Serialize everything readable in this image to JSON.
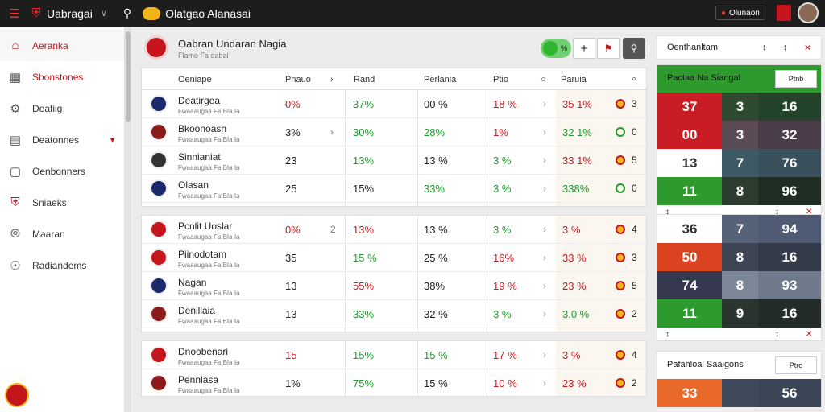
{
  "topbar": {
    "app_name": "Uabragai",
    "search_title": "Olatgao Alanasai",
    "user_chip": "Olunaon",
    "icons": [
      "menu-icon",
      "crest-icon",
      "chevron-down-icon",
      "search-icon",
      "logo-badge-icon",
      "chat-icon",
      "flag-icon",
      "avatar"
    ]
  },
  "sidebar": {
    "items": [
      {
        "label": "Aeranka",
        "icon": "home-icon",
        "active": true
      },
      {
        "label": "Sbonstones",
        "icon": "building-icon",
        "active": false
      },
      {
        "label": "Deafiig",
        "icon": "trophy-icon",
        "active": false
      },
      {
        "label": "Deatonnes",
        "icon": "store-icon",
        "active": false
      },
      {
        "label": "Oenbonners",
        "icon": "bag-icon",
        "active": false
      },
      {
        "label": "Sniaeks",
        "icon": "shield-icon",
        "active": false
      },
      {
        "label": "Maaran",
        "icon": "compass-icon",
        "active": false
      },
      {
        "label": "Radiandems",
        "icon": "target-icon",
        "active": false
      }
    ]
  },
  "header": {
    "title": "Oabran Undaran Nagia",
    "subtitle": "Flamo Fa dabal",
    "toggle_label": "%"
  },
  "table": {
    "columns": [
      "Oeniape",
      "Pnauo",
      "Rand",
      "Perlania",
      "Ptio",
      "Paruia"
    ],
    "groups": [
      {
        "rows": [
          {
            "name": "Deatirgea",
            "sub": "Fwaaaugaa Fa BIa Ia",
            "crest": "#1a2a6c",
            "c1": "0%",
            "c1c": "red",
            "arrow": "",
            "c2": "37%",
            "c2c": "green",
            "c3": "00 %",
            "c3c": "",
            "c4": "18 %",
            "c4c": "red",
            "c5": "35 1%",
            "c5c": "red",
            "c6": "3",
            "icon": "ball"
          },
          {
            "name": "Bkoonoasn",
            "sub": "Fwaaaugaa Fa BIa Ia",
            "crest": "#8b1c1c",
            "c1": "3%",
            "c1c": "",
            "arrow": "›",
            "c2": "30%",
            "c2c": "green",
            "c3": "28%",
            "c3c": "green",
            "c4": "1%",
            "c4c": "red",
            "c5": "32 1%",
            "c5c": "green",
            "c6": "0",
            "icon": "ring"
          },
          {
            "name": "Sinnianiat",
            "sub": "Fwaaaugaa Fa BIa Ia",
            "crest": "#333333",
            "c1": "23",
            "c1c": "",
            "arrow": "",
            "c2": "13%",
            "c2c": "green",
            "c3": "13 %",
            "c3c": "",
            "c4": "3 %",
            "c4c": "green",
            "c5": "33 1%",
            "c5c": "red",
            "c6": "5",
            "icon": "ball"
          },
          {
            "name": "Olasan",
            "sub": "Fwaaaugaa Fa BIa Ia",
            "crest": "#1a2a6c",
            "c1": "25",
            "c1c": "",
            "arrow": "",
            "c2": "15%",
            "c2c": "",
            "c3": "33%",
            "c3c": "green",
            "c4": "3 %",
            "c4c": "green",
            "c5": "338%",
            "c5c": "green",
            "c6": "0",
            "icon": "ring"
          }
        ]
      },
      {
        "rows": [
          {
            "name": "Pcnlit Uoslar",
            "sub": "Fwaaaugaa Fa BIa Ia",
            "crest": "#c4161c",
            "c1": "0%",
            "c1c": "red",
            "arrow": "2",
            "c2": "13%",
            "c2c": "red",
            "c3": "13 %",
            "c3c": "",
            "c4": "3 %",
            "c4c": "green",
            "c5": "3 %",
            "c5c": "red",
            "c6": "4",
            "icon": "ball"
          },
          {
            "name": "Piinodotam",
            "sub": "Fwaaaugaa Fa BIa Ia",
            "crest": "#c4161c",
            "c1": "35",
            "c1c": "",
            "arrow": "",
            "c2": "15 %",
            "c2c": "green",
            "c3": "25 %",
            "c3c": "",
            "c4": "16%",
            "c4c": "red",
            "c5": "33 %",
            "c5c": "red",
            "c6": "3",
            "icon": "ball"
          },
          {
            "name": "Nagan",
            "sub": "Fwaaaugaa Fa BIa Ia",
            "crest": "#1a2a6c",
            "c1": "13",
            "c1c": "",
            "arrow": "",
            "c2": "55%",
            "c2c": "red",
            "c3": "38%",
            "c3c": "",
            "c4": "19 %",
            "c4c": "red",
            "c5": "23 %",
            "c5c": "red",
            "c6": "5",
            "icon": "ball"
          },
          {
            "name": "Deniliaia",
            "sub": "Fwaaaugaa Fa BIa Ia",
            "crest": "#8b1c1c",
            "c1": "13",
            "c1c": "",
            "arrow": "",
            "c2": "33%",
            "c2c": "green",
            "c3": "32 %",
            "c3c": "",
            "c4": "3 %",
            "c4c": "green",
            "c5": "3.0 %",
            "c5c": "green",
            "c6": "2",
            "icon": "ball"
          }
        ]
      },
      {
        "rows": [
          {
            "name": "Dnoobenari",
            "sub": "Fwaaaugaa Fa BIa Ia",
            "crest": "#c4161c",
            "c1": "15",
            "c1c": "red",
            "arrow": "",
            "c2": "15%",
            "c2c": "green",
            "c3": "15 %",
            "c3c": "green",
            "c4": "17 %",
            "c4c": "red",
            "c5": "3 %",
            "c5c": "red",
            "c6": "4",
            "icon": "ball"
          },
          {
            "name": "Pennlasa",
            "sub": "Fwaaaugaa Fa BIa Ia",
            "crest": "#8b1c1c",
            "c1": "1%",
            "c1c": "",
            "arrow": "",
            "c2": "75%",
            "c2c": "green",
            "c3": "15 %",
            "c3c": "",
            "c4": "10 %",
            "c4c": "red",
            "c5": "23 %",
            "c5c": "red",
            "c6": "2",
            "icon": "ball"
          }
        ]
      }
    ]
  },
  "right": {
    "header_label": "Oenthanltam",
    "card1": {
      "title": "Pactaa Na Siangal",
      "button": "Ptnb",
      "rows": [
        {
          "left": "37",
          "left_color": "#c91c24",
          "mid": "3",
          "mid_color": "#2e4b32",
          "right": "16",
          "right_color": "#24432b"
        },
        {
          "left": "00",
          "left_color": "#c91c24",
          "mid": "3",
          "mid_color": "#5a4b55",
          "right": "32",
          "right_color": "#4a3c48"
        },
        {
          "left": "13",
          "left_color": "#ffffff",
          "mid": "7",
          "mid_color": "#3d5a64",
          "right": "76",
          "right_color": "#3a505c"
        },
        {
          "left": "11",
          "left_color": "#2e9a2e",
          "mid": "8",
          "mid_color": "#2c3c2e",
          "right": "96",
          "right_color": "#1f2d24"
        }
      ]
    },
    "card2": {
      "rows": [
        {
          "left": "36",
          "left_color": "#ffffff",
          "mid": "7",
          "mid_color": "#556277",
          "right": "94",
          "right_color": "#4e5b72"
        },
        {
          "left": "50",
          "left_color": "#d9431f",
          "mid": "8",
          "mid_color": "#3e4554",
          "right": "16",
          "right_color": "#333a49"
        },
        {
          "left": "74",
          "left_color": "#35384f",
          "mid": "8",
          "mid_color": "#7b8797",
          "right": "93",
          "right_color": "#6f7b8c"
        },
        {
          "left": "11",
          "left_color": "#2e9a2e",
          "mid": "9",
          "mid_color": "#2b3530",
          "right": "16",
          "right_color": "#232c28"
        }
      ]
    },
    "card3": {
      "title": "Pafahloal Saaigons",
      "button": "Ptro",
      "rows": [
        {
          "left": "33",
          "left_color": "#e8692a",
          "mid": "",
          "mid_color": "#3e4a5c",
          "right": "56",
          "right_color": "#3a4556"
        }
      ]
    }
  }
}
